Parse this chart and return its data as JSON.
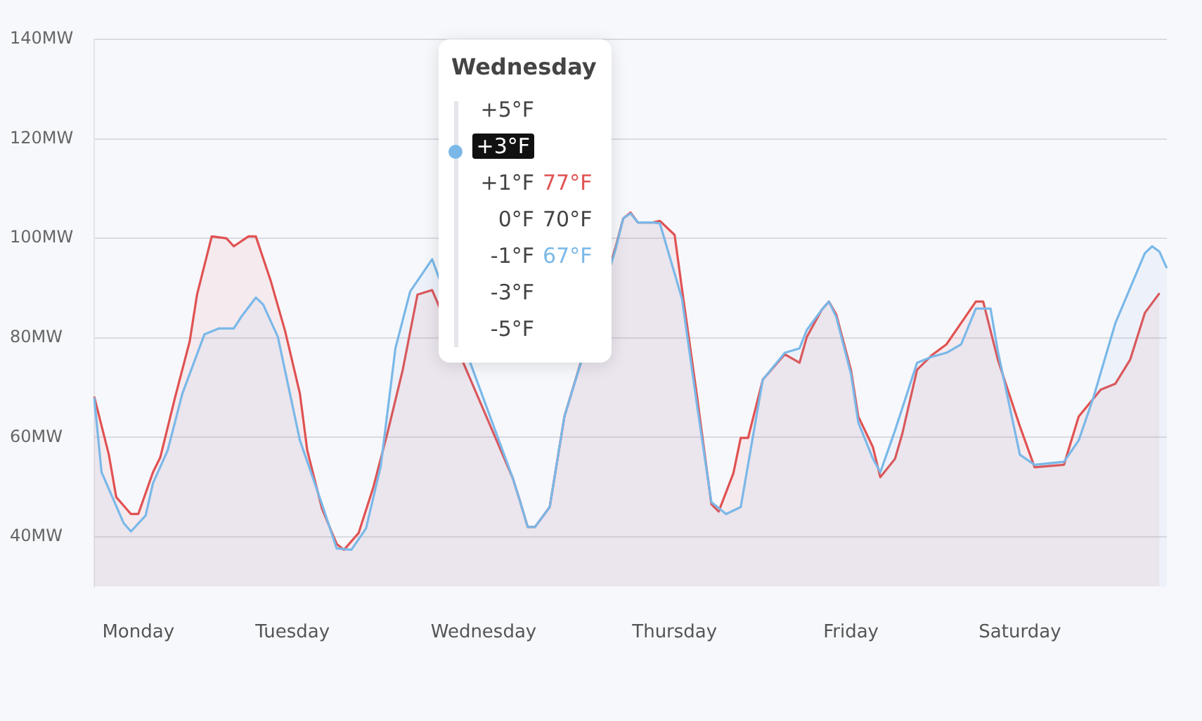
{
  "chart_data": {
    "type": "area",
    "categories": [
      null,
      null,
      null,
      null,
      null,
      null,
      "Monday",
      null,
      null,
      null,
      null,
      null,
      null,
      null,
      null,
      null,
      null,
      null,
      null,
      null,
      null,
      null,
      null,
      null,
      null,
      null,
      null,
      "Tuesday",
      null,
      null,
      null,
      null,
      null,
      null,
      null,
      null,
      null,
      null,
      null,
      null,
      null,
      null,
      null,
      null,
      null,
      null,
      null,
      null,
      null,
      null,
      null,
      null,
      null,
      "Wednesday",
      null,
      null,
      null,
      null,
      null,
      null,
      null,
      null,
      null,
      null,
      null,
      null,
      null,
      null,
      null,
      null,
      null,
      null,
      null,
      null,
      null,
      null,
      null,
      null,
      null,
      "Thursday",
      null,
      null,
      null,
      null,
      null,
      null,
      null,
      null,
      null,
      null,
      null,
      null,
      null,
      null,
      null,
      null,
      null,
      null,
      null,
      null,
      null,
      null,
      null,
      "Friday",
      null,
      null,
      null,
      null,
      null,
      null,
      null,
      null,
      null,
      null,
      null,
      null,
      null,
      null,
      null,
      null,
      null,
      null,
      null,
      null,
      null,
      null,
      "Saturday",
      null,
      null,
      null,
      null,
      null,
      null,
      null,
      null,
      null,
      null,
      null,
      null,
      null,
      null,
      null,
      null,
      null,
      null,
      null,
      null
    ],
    "ylim": [
      30,
      140
    ],
    "yticks": [
      {
        "value": 40,
        "label": "40MW"
      },
      {
        "value": 60,
        "label": "60MW"
      },
      {
        "value": 80,
        "label": "80MW"
      },
      {
        "value": 100,
        "label": "100MW"
      },
      {
        "value": 120,
        "label": "120MW"
      },
      {
        "value": 140,
        "label": "140MW"
      }
    ],
    "grid": "y",
    "legend": false,
    "marker": "none",
    "line_style": "solid",
    "series": [
      {
        "color": "#7ab8e8",
        "values": [
          68,
          53,
          null,
          null,
          42.8,
          41.1,
          null,
          44.3,
          50.8,
          null,
          57.4,
          null,
          68.8,
          null,
          null,
          80.7,
          null,
          81.9,
          null,
          81.9,
          84.2,
          null,
          88.1,
          86.7,
          null,
          80.2,
          null,
          null,
          59.4,
          null,
          null,
          46.6,
          null,
          37.7,
          null,
          37.4,
          null,
          41.7,
          null,
          54.2,
          null,
          77.9,
          null,
          89.3,
          null,
          null,
          95.8,
          null,
          null,
          null,
          null,
          null,
          null,
          null,
          null,
          null,
          null,
          51.7,
          47,
          42,
          42,
          null,
          46,
          null,
          64.2,
          null,
          null,
          null,
          null,
          null,
          null,
          98,
          104,
          105,
          103.2,
          null,
          103.2,
          103,
          null,
          null,
          87.9,
          null,
          67,
          null,
          47,
          null,
          44.6,
          null,
          46,
          null,
          null,
          71.6,
          null,
          null,
          77,
          null,
          77.9,
          81.6,
          null,
          85.6,
          87.3,
          84.2,
          null,
          72.8,
          63,
          null,
          55.7,
          53,
          null,
          61.4,
          null,
          null,
          75,
          null,
          76.2,
          null,
          77,
          null,
          78.7,
          null,
          85.9,
          null,
          85.9,
          77.3,
          null,
          null,
          56.5,
          null,
          54.5,
          null,
          null,
          null,
          55.1,
          null,
          59.4,
          null,
          68,
          null,
          null,
          83,
          null,
          null,
          null,
          97,
          98.4,
          97.3,
          94
        ]
      },
      {
        "color": "#e05252",
        "values": [
          68.2,
          null,
          56.5,
          48,
          null,
          44.6,
          44.6,
          null,
          53,
          56,
          null,
          68,
          null,
          79.3,
          88.7,
          null,
          100.4,
          null,
          100,
          98.4,
          null,
          100.4,
          100.4,
          null,
          91.6,
          null,
          81.3,
          null,
          68.8,
          57.4,
          null,
          45.7,
          null,
          38.6,
          37.4,
          null,
          40.8,
          null,
          50,
          null,
          61.4,
          null,
          73.6,
          null,
          88.7,
          null,
          89.6,
          null,
          null,
          null,
          null,
          null,
          null,
          null,
          null,
          null,
          null,
          51.7,
          47,
          42,
          42,
          null,
          46,
          null,
          64.2,
          null,
          null,
          null,
          null,
          null,
          null,
          98.4,
          104,
          105.2,
          103.2,
          null,
          103.2,
          103.5,
          null,
          100.7,
          89.9,
          null,
          68.8,
          null,
          46.6,
          45.1,
          null,
          52.8,
          59.9,
          59.9,
          null,
          71.6,
          null,
          null,
          76.7,
          null,
          75,
          80.2,
          null,
          85.6,
          87.3,
          84.7,
          null,
          73.6,
          64.2,
          null,
          58,
          52,
          null,
          55.7,
          60.8,
          null,
          73.6,
          null,
          76.5,
          null,
          78.7,
          null,
          83,
          null,
          87.3,
          87.3,
          null,
          75.6,
          null,
          null,
          62.2,
          null,
          54,
          null,
          null,
          null,
          54.5,
          null,
          64.2,
          null,
          null,
          69.6,
          null,
          70.8,
          null,
          75.6,
          null,
          85,
          null,
          89,
          null
        ]
      }
    ],
    "annotations": [
      "Wednesday",
      "+5°F",
      "+3°F",
      "+1°F",
      "0°F",
      "-1°F",
      "-3°F",
      "-5°F",
      "77°F",
      "70°F",
      "67°F"
    ]
  }
}
